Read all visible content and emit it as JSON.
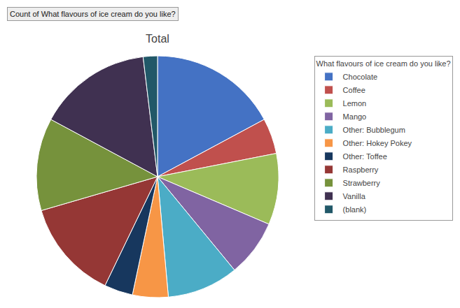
{
  "chart_data": {
    "type": "pie",
    "title": "Total",
    "annotations": [
      "Count of What flavours of ice cream do you like?"
    ],
    "legend_title": "What flavours of ice cream do you like?",
    "categories": [
      "Chocolate",
      "Coffee",
      "Lemon",
      "Mango",
      "Other: Bubblegum",
      "Other: Hokey Pokey",
      "Other: Toffee",
      "Raspberry",
      "Strawberry",
      "Vanilla",
      "(blank)"
    ],
    "values": [
      18,
      5,
      10,
      8,
      10,
      5,
      4,
      14,
      13,
      16,
      2
    ],
    "colors": [
      "#4472C4",
      "#C0504D",
      "#9BBB59",
      "#8064A2",
      "#4BACC6",
      "#F79646",
      "#17375E",
      "#953735",
      "#76923C",
      "#403151",
      "#215868"
    ],
    "legend": "right",
    "data_labels": false
  }
}
